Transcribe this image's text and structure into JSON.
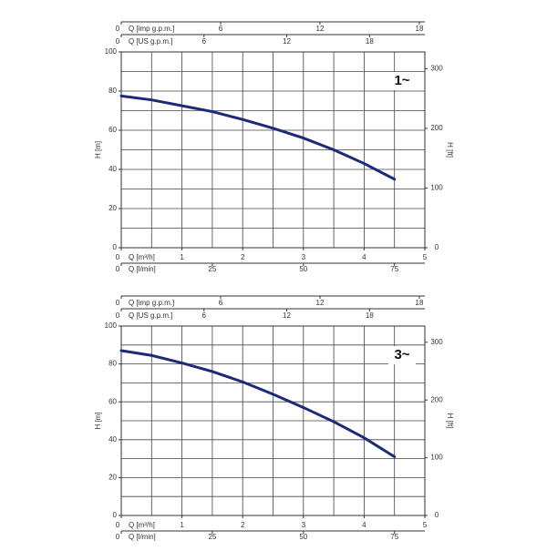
{
  "chart_data": [
    {
      "type": "line",
      "label": "1~",
      "xlabel": "Q [m³/h]",
      "ylabel": "H [m]",
      "y2label": "H [ft]",
      "x": [
        0,
        0.5,
        1,
        1.5,
        2,
        2.5,
        3,
        3.5,
        4,
        4.5
      ],
      "series": [
        {
          "color": "#1c2a78",
          "values": [
            77.5,
            75.5,
            72.5,
            69.5,
            65.5,
            61,
            56,
            50,
            43,
            35
          ]
        }
      ],
      "xlim": [
        0,
        5
      ],
      "xticks": [
        0,
        1,
        2,
        3,
        4,
        5
      ],
      "ylim": [
        0,
        100
      ],
      "yticks": [
        0,
        20,
        40,
        60,
        80,
        100
      ],
      "y2lim": [
        0,
        328.1
      ],
      "y2ticks": [
        0,
        100,
        200,
        300
      ],
      "xgrid": [
        0.5,
        1,
        1.5,
        2,
        2.5,
        3,
        3.5,
        4,
        4.5
      ],
      "ygrid": [
        10,
        20,
        30,
        40,
        50,
        60,
        70,
        80,
        90
      ],
      "top_axes": [
        {
          "label": "Q [imp g.p.m.]",
          "xlim": [
            0,
            18.33
          ],
          "xticks": [
            0,
            6,
            12,
            18
          ]
        },
        {
          "label": "Q [US g.p.m.]",
          "xlim": [
            0,
            22.01
          ],
          "xticks": [
            0,
            6,
            12,
            18
          ]
        }
      ],
      "bottom_axis2": {
        "label": "Q [l/min]",
        "xlim": [
          0,
          83.33
        ],
        "xticks": [
          0,
          25,
          50,
          75
        ]
      }
    },
    {
      "type": "line",
      "label": "3~",
      "xlabel": "Q [m³/h]",
      "ylabel": "H [m]",
      "y2label": "H [ft]",
      "x": [
        0,
        0.5,
        1,
        1.5,
        2,
        2.5,
        3,
        3.5,
        4,
        4.5
      ],
      "series": [
        {
          "color": "#1c2a78",
          "values": [
            87,
            84.5,
            80.5,
            76,
            70.5,
            64,
            57,
            49.5,
            41,
            31
          ]
        }
      ],
      "xlim": [
        0,
        5
      ],
      "xticks": [
        0,
        1,
        2,
        3,
        4,
        5
      ],
      "ylim": [
        0,
        100
      ],
      "yticks": [
        0,
        20,
        40,
        60,
        80,
        100
      ],
      "y2lim": [
        0,
        328.1
      ],
      "y2ticks": [
        0,
        100,
        200,
        300
      ],
      "xgrid": [
        0.5,
        1,
        1.5,
        2,
        2.5,
        3,
        3.5,
        4,
        4.5
      ],
      "ygrid": [
        10,
        20,
        30,
        40,
        50,
        60,
        70,
        80,
        90
      ],
      "top_axes": [
        {
          "label": "Q [imp g.p.m.]",
          "xlim": [
            0,
            18.33
          ],
          "xticks": [
            0,
            6,
            12,
            18
          ]
        },
        {
          "label": "Q [US g.p.m.]",
          "xlim": [
            0,
            22.01
          ],
          "xticks": [
            0,
            6,
            12,
            18
          ]
        }
      ],
      "bottom_axis2": {
        "label": "Q [l/min]",
        "xlim": [
          0,
          83.33
        ],
        "xticks": [
          0,
          25,
          50,
          75
        ]
      }
    }
  ]
}
